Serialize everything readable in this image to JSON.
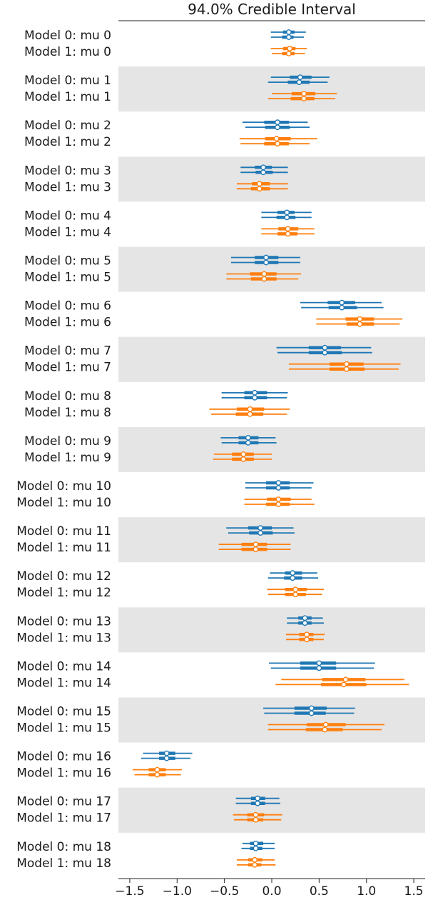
{
  "chart_data": {
    "type": "forest",
    "title": "94.0% Credible Interval",
    "xlim": [
      -1.62,
      1.62
    ],
    "x_ticks": [
      -1.5,
      -1.0,
      -0.5,
      0.0,
      0.5,
      1.0,
      1.5
    ],
    "x_tick_labels": [
      "−1.5",
      "−1.0",
      "−0.5",
      "0.0",
      "0.5",
      "1.0",
      "1.5"
    ],
    "colors": {
      "model0": "#1f77b4",
      "model1": "#ff7f0e",
      "band": "#e5e5e5",
      "axis": "#222222"
    },
    "models": [
      "Model 0",
      "Model 1"
    ],
    "rows": [
      {
        "label": "Model 0: mu 0",
        "model": 0,
        "chains": [
          [
            -0.01,
            0.36,
            0.12,
            0.24,
            0.18
          ],
          [
            -0.01,
            0.34,
            0.11,
            0.23,
            0.18
          ]
        ]
      },
      {
        "label": "Model 1: mu 0",
        "model": 1,
        "chains": [
          [
            -0.01,
            0.37,
            0.12,
            0.25,
            0.19
          ],
          [
            0.0,
            0.35,
            0.11,
            0.24,
            0.18
          ]
        ]
      },
      {
        "label": "Model 0: mu 1",
        "model": 0,
        "chains": [
          [
            -0.01,
            0.61,
            0.19,
            0.42,
            0.3
          ],
          [
            -0.04,
            0.59,
            0.17,
            0.4,
            0.29
          ]
        ]
      },
      {
        "label": "Model 1: mu 1",
        "model": 1,
        "chains": [
          [
            0.0,
            0.69,
            0.21,
            0.46,
            0.34
          ],
          [
            -0.04,
            0.67,
            0.2,
            0.45,
            0.34
          ]
        ]
      },
      {
        "label": "Model 0: mu 2",
        "model": 0,
        "chains": [
          [
            -0.31,
            0.38,
            -0.08,
            0.18,
            0.06
          ],
          [
            -0.28,
            0.4,
            -0.07,
            0.19,
            0.06
          ]
        ]
      },
      {
        "label": "Model 1: mu 2",
        "model": 1,
        "chains": [
          [
            -0.34,
            0.48,
            -0.07,
            0.2,
            0.05
          ],
          [
            -0.33,
            0.4,
            -0.08,
            0.18,
            0.06
          ]
        ]
      },
      {
        "label": "Model 0: mu 3",
        "model": 0,
        "chains": [
          [
            -0.33,
            0.17,
            -0.18,
            0.0,
            -0.09
          ],
          [
            -0.33,
            0.17,
            -0.17,
            0.01,
            -0.09
          ]
        ]
      },
      {
        "label": "Model 1: mu 3",
        "model": 1,
        "chains": [
          [
            -0.37,
            0.17,
            -0.21,
            -0.02,
            -0.13
          ],
          [
            -0.37,
            0.17,
            -0.22,
            -0.02,
            -0.13
          ]
        ]
      },
      {
        "label": "Model 0: mu 4",
        "model": 0,
        "chains": [
          [
            -0.11,
            0.42,
            0.06,
            0.24,
            0.16
          ],
          [
            -0.11,
            0.42,
            0.05,
            0.25,
            0.16
          ]
        ]
      },
      {
        "label": "Model 1: mu 4",
        "model": 1,
        "chains": [
          [
            -0.11,
            0.45,
            0.07,
            0.28,
            0.17
          ],
          [
            -0.11,
            0.45,
            0.06,
            0.27,
            0.17
          ]
        ]
      },
      {
        "label": "Model 0: mu 5",
        "model": 0,
        "chains": [
          [
            -0.43,
            0.3,
            -0.18,
            0.07,
            -0.06
          ],
          [
            -0.43,
            0.3,
            -0.18,
            0.07,
            -0.06
          ]
        ]
      },
      {
        "label": "Model 1: mu 5",
        "model": 1,
        "chains": [
          [
            -0.48,
            0.31,
            -0.23,
            0.05,
            -0.08
          ],
          [
            -0.48,
            0.28,
            -0.22,
            0.05,
            -0.08
          ]
        ]
      },
      {
        "label": "Model 0: mu 6",
        "model": 0,
        "chains": [
          [
            0.3,
            1.16,
            0.59,
            0.88,
            0.74
          ],
          [
            0.31,
            1.18,
            0.6,
            0.9,
            0.74
          ]
        ]
      },
      {
        "label": "Model 1: mu 6",
        "model": 1,
        "chains": [
          [
            0.47,
            1.38,
            0.78,
            1.08,
            0.93
          ],
          [
            0.47,
            1.35,
            0.79,
            1.08,
            0.93
          ]
        ]
      },
      {
        "label": "Model 0: mu 7",
        "model": 0,
        "chains": [
          [
            0.05,
            1.05,
            0.39,
            0.73,
            0.56
          ],
          [
            0.06,
            1.06,
            0.39,
            0.74,
            0.56
          ]
        ]
      },
      {
        "label": "Model 1: mu 7",
        "model": 1,
        "chains": [
          [
            0.18,
            1.36,
            0.61,
            0.97,
            0.79
          ],
          [
            0.18,
            1.34,
            0.61,
            0.98,
            0.79
          ]
        ]
      },
      {
        "label": "Model 0: mu 8",
        "model": 0,
        "chains": [
          [
            -0.53,
            0.17,
            -0.29,
            -0.05,
            -0.18
          ],
          [
            -0.53,
            0.16,
            -0.29,
            -0.05,
            -0.18
          ]
        ]
      },
      {
        "label": "Model 1: mu 8",
        "model": 1,
        "chains": [
          [
            -0.66,
            0.19,
            -0.37,
            -0.08,
            -0.23
          ],
          [
            -0.64,
            0.16,
            -0.38,
            -0.09,
            -0.23
          ]
        ]
      },
      {
        "label": "Model 0: mu 9",
        "model": 0,
        "chains": [
          [
            -0.54,
            0.04,
            -0.35,
            -0.14,
            -0.25
          ],
          [
            -0.53,
            0.05,
            -0.35,
            -0.14,
            -0.25
          ]
        ]
      },
      {
        "label": "Model 1: mu 9",
        "model": 1,
        "chains": [
          [
            -0.61,
            0.0,
            -0.42,
            -0.19,
            -0.3
          ],
          [
            -0.62,
            0.0,
            -0.42,
            -0.19,
            -0.3
          ]
        ]
      },
      {
        "label": "Model 0: mu 10",
        "model": 0,
        "chains": [
          [
            -0.28,
            0.44,
            -0.06,
            0.19,
            0.07
          ],
          [
            -0.28,
            0.42,
            -0.06,
            0.19,
            0.07
          ]
        ]
      },
      {
        "label": "Model 1: mu 10",
        "model": 1,
        "chains": [
          [
            -0.29,
            0.42,
            -0.05,
            0.2,
            0.07
          ],
          [
            -0.29,
            0.45,
            -0.06,
            0.19,
            0.07
          ]
        ]
      },
      {
        "label": "Model 0: mu 11",
        "model": 0,
        "chains": [
          [
            -0.48,
            0.23,
            -0.25,
            0.0,
            -0.12
          ],
          [
            -0.46,
            0.24,
            -0.24,
            0.01,
            -0.12
          ]
        ]
      },
      {
        "label": "Model 1: mu 11",
        "model": 1,
        "chains": [
          [
            -0.56,
            0.2,
            -0.32,
            -0.05,
            -0.17
          ],
          [
            -0.56,
            0.2,
            -0.32,
            -0.05,
            -0.17
          ]
        ]
      },
      {
        "label": "Model 0: mu 12",
        "model": 0,
        "chains": [
          [
            -0.02,
            0.48,
            0.14,
            0.32,
            0.22
          ],
          [
            -0.04,
            0.49,
            0.13,
            0.32,
            0.22
          ]
        ]
      },
      {
        "label": "Model 1: mu 12",
        "model": 1,
        "chains": [
          [
            -0.05,
            0.55,
            0.14,
            0.37,
            0.25
          ],
          [
            -0.04,
            0.53,
            0.14,
            0.36,
            0.25
          ]
        ]
      },
      {
        "label": "Model 0: mu 13",
        "model": 0,
        "chains": [
          [
            0.16,
            0.54,
            0.28,
            0.42,
            0.35
          ],
          [
            0.16,
            0.55,
            0.28,
            0.42,
            0.35
          ]
        ]
      },
      {
        "label": "Model 1: mu 13",
        "model": 1,
        "chains": [
          [
            0.15,
            0.56,
            0.29,
            0.44,
            0.37
          ],
          [
            0.15,
            0.55,
            0.29,
            0.44,
            0.37
          ]
        ]
      },
      {
        "label": "Model 0: mu 14",
        "model": 0,
        "chains": [
          [
            -0.03,
            1.09,
            0.3,
            0.68,
            0.5
          ],
          [
            -0.01,
            1.08,
            0.3,
            0.68,
            0.5
          ]
        ]
      },
      {
        "label": "Model 1: mu 14",
        "model": 1,
        "chains": [
          [
            0.1,
            1.4,
            0.53,
            0.99,
            0.78
          ],
          [
            0.04,
            1.45,
            0.52,
            1.0,
            0.76
          ]
        ]
      },
      {
        "label": "Model 0: mu 15",
        "model": 0,
        "chains": [
          [
            -0.09,
            0.88,
            0.24,
            0.58,
            0.42
          ],
          [
            -0.08,
            0.87,
            0.24,
            0.57,
            0.42
          ]
        ]
      },
      {
        "label": "Model 1: mu 15",
        "model": 1,
        "chains": [
          [
            -0.04,
            1.19,
            0.37,
            0.78,
            0.57
          ],
          [
            -0.04,
            1.16,
            0.36,
            0.75,
            0.56
          ]
        ]
      },
      {
        "label": "Model 0: mu 16",
        "model": 0,
        "chains": [
          [
            -1.36,
            -0.84,
            -1.19,
            -1.02,
            -1.11
          ],
          [
            -1.38,
            -0.86,
            -1.19,
            -1.02,
            -1.11
          ]
        ]
      },
      {
        "label": "Model 1: mu 16",
        "model": 1,
        "chains": [
          [
            -1.47,
            -0.95,
            -1.3,
            -1.12,
            -1.21
          ],
          [
            -1.45,
            -0.96,
            -1.3,
            -1.12,
            -1.21
          ]
        ]
      },
      {
        "label": "Model 0: mu 17",
        "model": 0,
        "chains": [
          [
            -0.38,
            0.08,
            -0.22,
            -0.07,
            -0.15
          ],
          [
            -0.38,
            0.09,
            -0.22,
            -0.07,
            -0.15
          ]
        ]
      },
      {
        "label": "Model 1: mu 17",
        "model": 1,
        "chains": [
          [
            -0.41,
            0.11,
            -0.26,
            -0.08,
            -0.17
          ],
          [
            -0.4,
            0.1,
            -0.26,
            -0.09,
            -0.17
          ]
        ]
      },
      {
        "label": "Model 0: mu 18",
        "model": 0,
        "chains": [
          [
            -0.31,
            0.03,
            -0.23,
            -0.09,
            -0.17
          ],
          [
            -0.32,
            0.03,
            -0.23,
            -0.1,
            -0.17
          ]
        ]
      },
      {
        "label": "Model 1: mu 18",
        "model": 1,
        "chains": [
          [
            -0.37,
            0.03,
            -0.25,
            -0.1,
            -0.18
          ],
          [
            -0.37,
            0.04,
            -0.25,
            -0.11,
            -0.18
          ]
        ]
      }
    ]
  }
}
